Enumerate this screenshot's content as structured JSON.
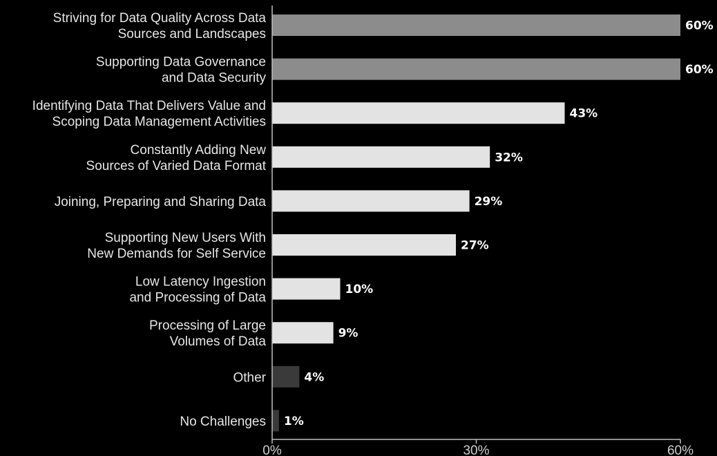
{
  "chart_data": {
    "type": "bar",
    "orientation": "horizontal",
    "categories": [
      [
        "Striving for Data Quality Across Data",
        "Sources and Landscapes"
      ],
      [
        "Supporting Data Governance",
        "and Data Security"
      ],
      [
        "Identifying Data That Delivers Value and",
        "Scoping Data Management Activities"
      ],
      [
        "Constantly Adding New",
        "Sources of Varied Data Format"
      ],
      [
        "Joining, Preparing and Sharing Data"
      ],
      [
        "Supporting New Users With",
        "New Demands for Self Service"
      ],
      [
        "Low Latency Ingestion",
        "and Processing of Data"
      ],
      [
        "Processing of Large",
        "Volumes of Data"
      ],
      [
        "Other"
      ],
      [
        "No Challenges"
      ]
    ],
    "values": [
      60,
      60,
      43,
      32,
      29,
      27,
      10,
      9,
      4,
      1
    ],
    "value_labels": [
      "60%",
      "60%",
      "43%",
      "32%",
      "29%",
      "27%",
      "10%",
      "9%",
      "4%",
      "1%"
    ],
    "bar_colors": [
      "#8c8c8c",
      "#8c8c8c",
      "#e3e3e3",
      "#e3e3e3",
      "#e3e3e3",
      "#e3e3e3",
      "#e3e3e3",
      "#e3e3e3",
      "#3a3a3a",
      "#3a3a3a"
    ],
    "xlim": [
      0,
      60
    ],
    "xticks": [
      0,
      30,
      60
    ],
    "xtick_labels": [
      "0%",
      "30%",
      "60%"
    ],
    "title": "",
    "xlabel": "",
    "ylabel": "",
    "grid": false,
    "legend": "none"
  },
  "colors": {
    "background": "#000000",
    "axis": "#bfbfbf"
  }
}
